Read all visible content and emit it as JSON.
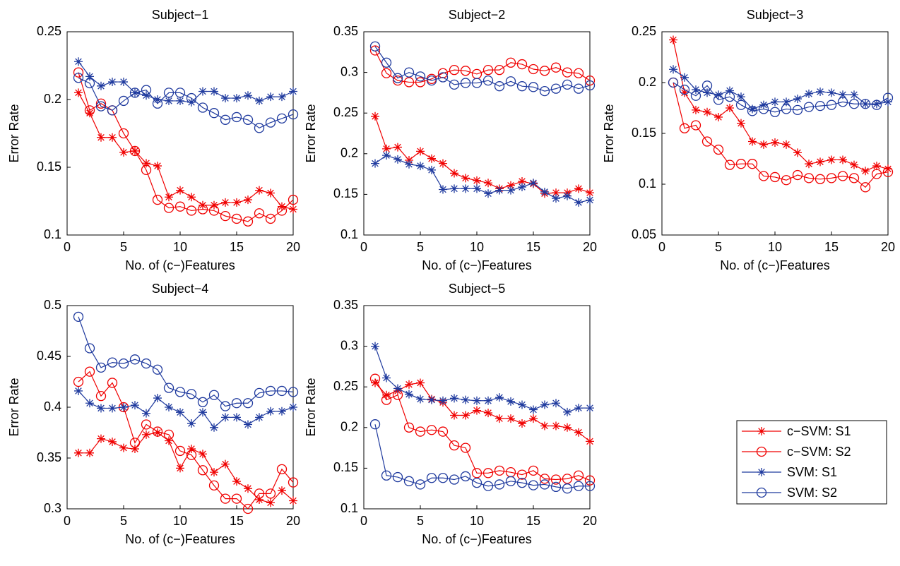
{
  "legend": [
    {
      "name": "c−SVM: S1",
      "color": "#f00000",
      "marker": "star"
    },
    {
      "name": "c−SVM: S2",
      "color": "#f00000",
      "marker": "circle"
    },
    {
      "name": "SVM: S1",
      "color": "#1f3a9e",
      "marker": "star"
    },
    {
      "name": "SVM: S2",
      "color": "#1f3a9e",
      "marker": "circle"
    }
  ],
  "chart_data": [
    {
      "type": "line",
      "title": "Subject−1",
      "xlabel": "No. of (c−)Features",
      "ylabel": "Error Rate",
      "x": [
        1,
        2,
        3,
        4,
        5,
        6,
        7,
        8,
        9,
        10,
        11,
        12,
        13,
        14,
        15,
        16,
        17,
        18,
        19,
        20
      ],
      "xlim": [
        0,
        20
      ],
      "xticks": [
        0,
        5,
        10,
        15,
        20
      ],
      "ylim": [
        0.1,
        0.25
      ],
      "yticks": [
        0.1,
        0.15,
        0.2,
        0.25
      ],
      "series": [
        {
          "values": [
            0.205,
            0.19,
            0.172,
            0.172,
            0.161,
            0.162,
            0.153,
            0.151,
            0.128,
            0.133,
            0.128,
            0.122,
            0.122,
            0.124,
            0.124,
            0.126,
            0.133,
            0.131,
            0.121,
            0.119
          ]
        },
        {
          "values": [
            0.22,
            0.192,
            0.197,
            0.192,
            0.175,
            0.162,
            0.148,
            0.126,
            0.12,
            0.121,
            0.118,
            0.119,
            0.118,
            0.114,
            0.112,
            0.11,
            0.116,
            0.112,
            0.118,
            0.126
          ]
        },
        {
          "values": [
            0.228,
            0.217,
            0.21,
            0.213,
            0.213,
            0.205,
            0.203,
            0.2,
            0.199,
            0.199,
            0.198,
            0.206,
            0.206,
            0.201,
            0.201,
            0.203,
            0.199,
            0.202,
            0.202,
            0.206
          ]
        },
        {
          "values": [
            0.216,
            0.212,
            0.195,
            0.192,
            0.199,
            0.205,
            0.207,
            0.197,
            0.205,
            0.205,
            0.201,
            0.194,
            0.19,
            0.185,
            0.187,
            0.185,
            0.179,
            0.183,
            0.186,
            0.189
          ]
        }
      ]
    },
    {
      "type": "line",
      "title": "Subject−2",
      "xlabel": "No. of (c−)Features",
      "ylabel": "Error Rate",
      "x": [
        1,
        2,
        3,
        4,
        5,
        6,
        7,
        8,
        9,
        10,
        11,
        12,
        13,
        14,
        15,
        16,
        17,
        18,
        19,
        20
      ],
      "xlim": [
        0,
        20
      ],
      "xticks": [
        0,
        5,
        10,
        15,
        20
      ],
      "ylim": [
        0.1,
        0.35
      ],
      "yticks": [
        0.1,
        0.15,
        0.2,
        0.25,
        0.3,
        0.35
      ],
      "series": [
        {
          "values": [
            0.246,
            0.206,
            0.208,
            0.192,
            0.203,
            0.194,
            0.188,
            0.176,
            0.17,
            0.167,
            0.164,
            0.157,
            0.161,
            0.166,
            0.163,
            0.151,
            0.152,
            0.152,
            0.157,
            0.152
          ]
        },
        {
          "values": [
            0.327,
            0.299,
            0.29,
            0.288,
            0.288,
            0.292,
            0.299,
            0.303,
            0.302,
            0.298,
            0.303,
            0.303,
            0.312,
            0.31,
            0.304,
            0.302,
            0.306,
            0.3,
            0.299,
            0.29
          ]
        },
        {
          "values": [
            0.188,
            0.198,
            0.193,
            0.187,
            0.185,
            0.18,
            0.156,
            0.157,
            0.157,
            0.157,
            0.151,
            0.155,
            0.155,
            0.159,
            0.164,
            0.153,
            0.145,
            0.148,
            0.14,
            0.143
          ]
        },
        {
          "values": [
            0.332,
            0.312,
            0.293,
            0.3,
            0.295,
            0.29,
            0.294,
            0.285,
            0.287,
            0.287,
            0.29,
            0.283,
            0.289,
            0.283,
            0.282,
            0.277,
            0.28,
            0.285,
            0.28,
            0.284
          ]
        }
      ]
    },
    {
      "type": "line",
      "title": "Subject−3",
      "xlabel": "No. of (c−)Features",
      "ylabel": "Error Rate",
      "x": [
        1,
        2,
        3,
        4,
        5,
        6,
        7,
        8,
        9,
        10,
        11,
        12,
        13,
        14,
        15,
        16,
        17,
        18,
        19,
        20
      ],
      "xlim": [
        0,
        20
      ],
      "xticks": [
        0,
        5,
        10,
        15,
        20
      ],
      "ylim": [
        0.05,
        0.25
      ],
      "yticks": [
        0.05,
        0.1,
        0.15,
        0.2,
        0.25
      ],
      "series": [
        {
          "values": [
            0.242,
            0.19,
            0.173,
            0.171,
            0.166,
            0.175,
            0.16,
            0.142,
            0.139,
            0.141,
            0.139,
            0.131,
            0.12,
            0.122,
            0.124,
            0.124,
            0.119,
            0.113,
            0.118,
            0.115
          ]
        },
        {
          "values": [
            0.2,
            0.155,
            0.158,
            0.142,
            0.134,
            0.119,
            0.12,
            0.12,
            0.108,
            0.107,
            0.104,
            0.109,
            0.106,
            0.105,
            0.106,
            0.108,
            0.106,
            0.097,
            0.11,
            0.112
          ]
        },
        {
          "values": [
            0.213,
            0.205,
            0.193,
            0.19,
            0.188,
            0.192,
            0.186,
            0.174,
            0.178,
            0.181,
            0.181,
            0.184,
            0.189,
            0.191,
            0.19,
            0.188,
            0.188,
            0.179,
            0.179,
            0.181
          ]
        },
        {
          "values": [
            0.2,
            0.193,
            0.187,
            0.197,
            0.183,
            0.186,
            0.178,
            0.172,
            0.174,
            0.171,
            0.174,
            0.173,
            0.176,
            0.177,
            0.178,
            0.181,
            0.179,
            0.179,
            0.178,
            0.185
          ]
        }
      ]
    },
    {
      "type": "line",
      "title": "Subject−4",
      "xlabel": "No. of (c−)Features",
      "ylabel": "Error Rate",
      "x": [
        1,
        2,
        3,
        4,
        5,
        6,
        7,
        8,
        9,
        10,
        11,
        12,
        13,
        14,
        15,
        16,
        17,
        18,
        19,
        20
      ],
      "xlim": [
        0,
        20
      ],
      "xticks": [
        0,
        5,
        10,
        15,
        20
      ],
      "ylim": [
        0.3,
        0.5
      ],
      "yticks": [
        0.3,
        0.35,
        0.4,
        0.45,
        0.5
      ],
      "series": [
        {
          "values": [
            0.355,
            0.355,
            0.369,
            0.366,
            0.36,
            0.359,
            0.373,
            0.375,
            0.367,
            0.34,
            0.359,
            0.354,
            0.336,
            0.344,
            0.327,
            0.32,
            0.309,
            0.306,
            0.318,
            0.308
          ]
        },
        {
          "values": [
            0.425,
            0.435,
            0.411,
            0.424,
            0.4,
            0.365,
            0.383,
            0.376,
            0.373,
            0.357,
            0.353,
            0.338,
            0.323,
            0.31,
            0.31,
            0.3,
            0.315,
            0.315,
            0.339,
            0.326
          ]
        },
        {
          "values": [
            0.416,
            0.404,
            0.399,
            0.399,
            0.4,
            0.402,
            0.394,
            0.409,
            0.4,
            0.395,
            0.384,
            0.395,
            0.38,
            0.39,
            0.39,
            0.383,
            0.39,
            0.396,
            0.396,
            0.4
          ]
        },
        {
          "values": [
            0.489,
            0.458,
            0.439,
            0.444,
            0.443,
            0.447,
            0.443,
            0.437,
            0.419,
            0.415,
            0.413,
            0.405,
            0.412,
            0.401,
            0.404,
            0.404,
            0.414,
            0.416,
            0.416,
            0.415
          ]
        }
      ]
    },
    {
      "type": "line",
      "title": "Subject−5",
      "xlabel": "No. of (c−)Features",
      "ylabel": "Error Rate",
      "x": [
        1,
        2,
        3,
        4,
        5,
        6,
        7,
        8,
        9,
        10,
        11,
        12,
        13,
        14,
        15,
        16,
        17,
        18,
        19,
        20
      ],
      "xlim": [
        0,
        20
      ],
      "xticks": [
        0,
        5,
        10,
        15,
        20
      ],
      "ylim": [
        0.1,
        0.35
      ],
      "yticks": [
        0.1,
        0.15,
        0.2,
        0.25,
        0.3,
        0.35
      ],
      "series": [
        {
          "values": [
            0.255,
            0.24,
            0.245,
            0.253,
            0.255,
            0.235,
            0.231,
            0.215,
            0.215,
            0.221,
            0.218,
            0.211,
            0.211,
            0.205,
            0.211,
            0.202,
            0.202,
            0.2,
            0.194,
            0.183
          ]
        },
        {
          "values": [
            0.26,
            0.234,
            0.24,
            0.2,
            0.195,
            0.197,
            0.195,
            0.178,
            0.175,
            0.144,
            0.144,
            0.147,
            0.145,
            0.142,
            0.147,
            0.137,
            0.136,
            0.137,
            0.141,
            0.135
          ]
        },
        {
          "values": [
            0.3,
            0.261,
            0.248,
            0.241,
            0.235,
            0.234,
            0.233,
            0.236,
            0.234,
            0.233,
            0.233,
            0.237,
            0.232,
            0.228,
            0.222,
            0.228,
            0.23,
            0.219,
            0.224,
            0.224
          ]
        },
        {
          "values": [
            0.204,
            0.141,
            0.139,
            0.134,
            0.13,
            0.138,
            0.138,
            0.136,
            0.14,
            0.132,
            0.128,
            0.13,
            0.134,
            0.132,
            0.129,
            0.13,
            0.127,
            0.125,
            0.128,
            0.128
          ]
        }
      ]
    }
  ]
}
